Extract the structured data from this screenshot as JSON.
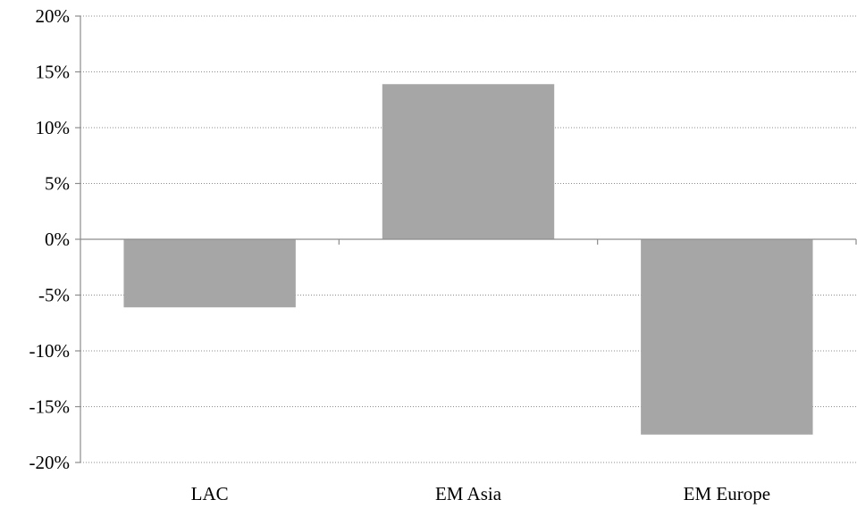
{
  "chart_data": {
    "type": "bar",
    "categories": [
      "LAC",
      "EM Asia",
      "EM Europe"
    ],
    "values": [
      -6.1,
      13.9,
      -17.5
    ],
    "y_ticks": [
      "20%",
      "15%",
      "10%",
      "5%",
      "0%",
      "-5%",
      "-10%",
      "-15%",
      "-20%"
    ],
    "y_tick_values": [
      20,
      15,
      10,
      5,
      0,
      -5,
      -10,
      -15,
      -20
    ],
    "ylim": [
      -20,
      20
    ],
    "y_unit": "%",
    "grid": true,
    "legend": "none",
    "bar_color": "#a6a6a6",
    "axis_color": "#8c8c8c",
    "title": "",
    "xlabel": "",
    "ylabel": ""
  }
}
